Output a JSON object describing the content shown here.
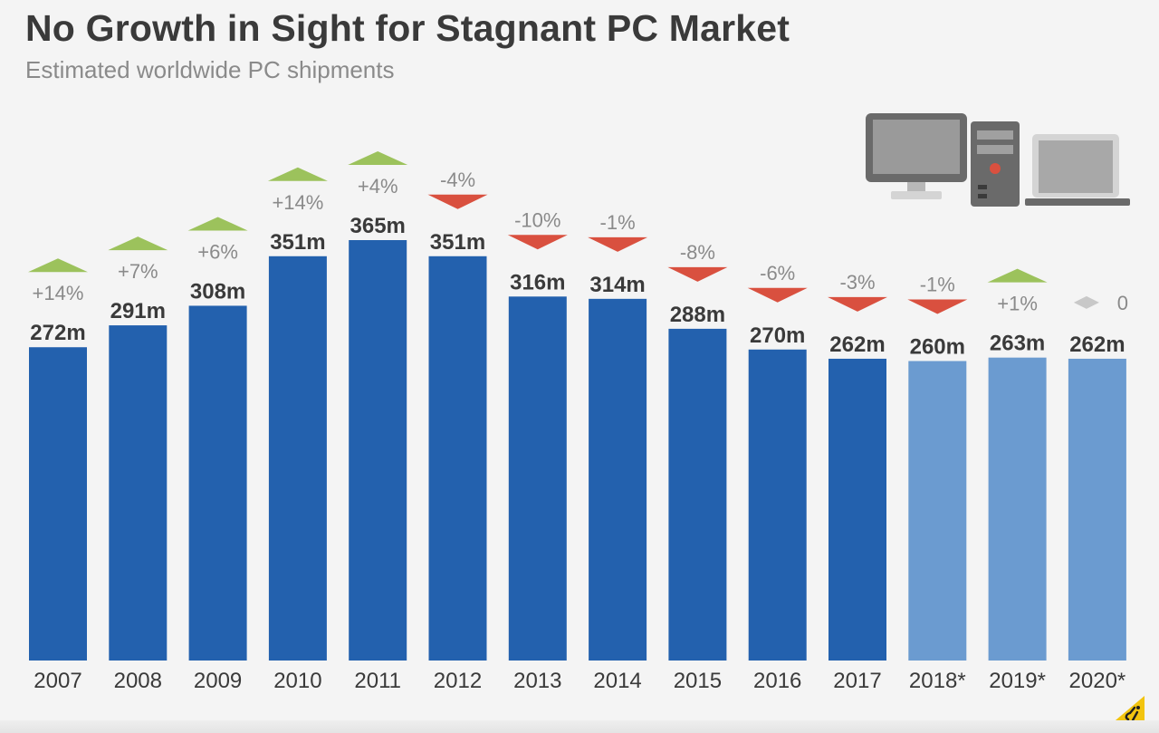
{
  "header": {
    "title": "No Growth in Sight for Stagnant PC Market",
    "subtitle": "Estimated worldwide PC shipments"
  },
  "colors": {
    "actual_bar": "#2361ae",
    "forecast_bar": "#6b9bd0",
    "up_arrow": "#9cc25c",
    "down_arrow": "#d9503f",
    "neutral_arrow": "#c8c8c8",
    "value_label": "#3a3a3a",
    "change_label": "#8a8a8a"
  },
  "icons": [
    "desktop-monitor-icon",
    "pc-tower-icon",
    "laptop-icon",
    "statista-logo-icon"
  ],
  "chart_data": {
    "type": "bar",
    "title": "No Growth in Sight for Stagnant PC Market",
    "subtitle": "Estimated worldwide PC shipments",
    "categories": [
      "2007",
      "2008",
      "2009",
      "2010",
      "2011",
      "2012",
      "2013",
      "2014",
      "2015",
      "2016",
      "2017",
      "2018*",
      "2019*",
      "2020*"
    ],
    "values": [
      272,
      291,
      308,
      351,
      365,
      351,
      316,
      314,
      288,
      270,
      262,
      260,
      263,
      262
    ],
    "value_labels": [
      "272m",
      "291m",
      "308m",
      "351m",
      "365m",
      "351m",
      "316m",
      "314m",
      "288m",
      "270m",
      "262m",
      "260m",
      "263m",
      "262m"
    ],
    "change_labels": [
      "+14%",
      "+7%",
      "+6%",
      "+14%",
      "+4%",
      "-4%",
      "-10%",
      "-1%",
      "-8%",
      "-6%",
      "-3%",
      "-1%",
      "+1%",
      "0"
    ],
    "change_direction": [
      "up",
      "up",
      "up",
      "up",
      "up",
      "down",
      "down",
      "down",
      "down",
      "down",
      "down",
      "down",
      "up",
      "flat"
    ],
    "forecast": [
      false,
      false,
      false,
      false,
      false,
      false,
      false,
      false,
      false,
      false,
      false,
      true,
      true,
      true
    ],
    "ylim": [
      0,
      365
    ],
    "grid": false,
    "legend": "none"
  }
}
